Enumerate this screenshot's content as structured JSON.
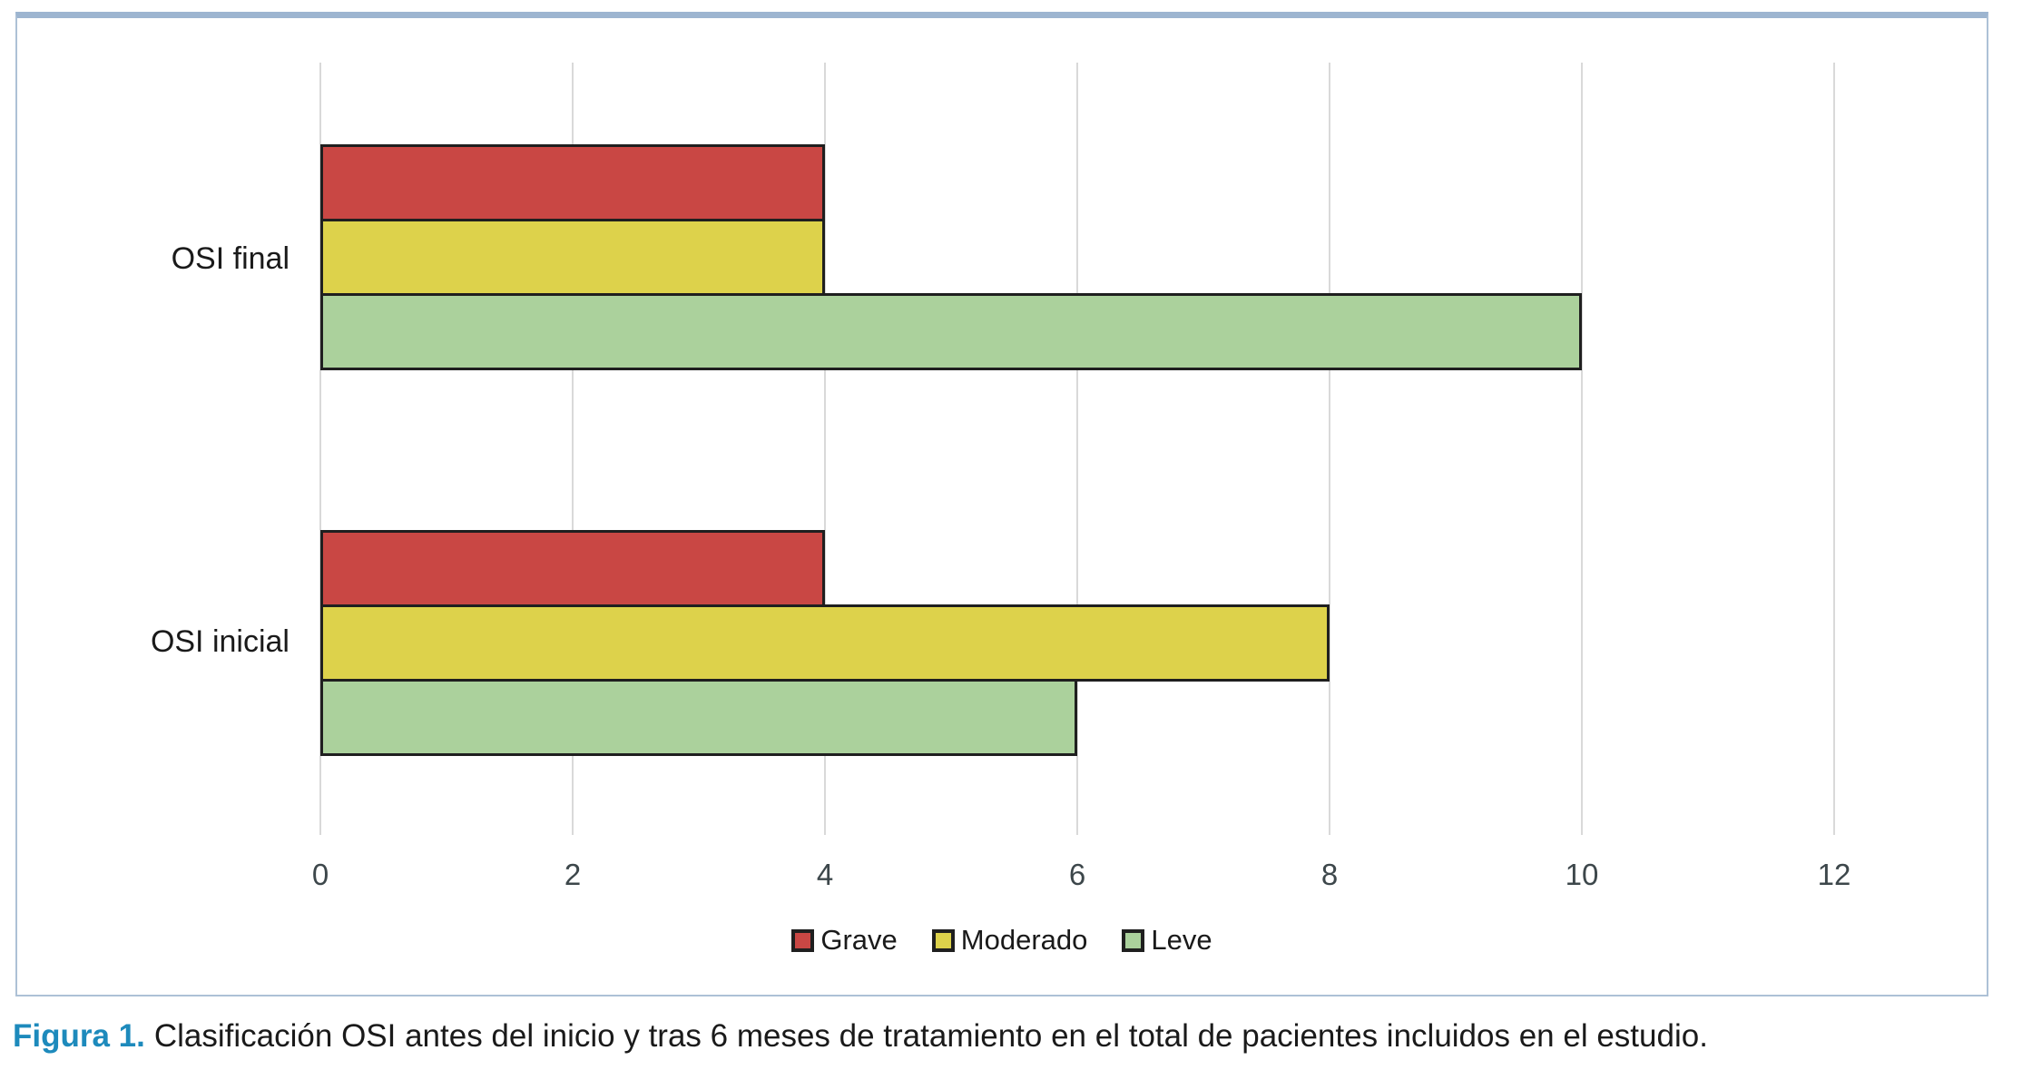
{
  "caption": {
    "label": "Figura 1.",
    "text": "Clasificación OSI antes del inicio y tras 6 meses de tratamiento en el total de pacientes incluidos en el estudio."
  },
  "chart_data": {
    "type": "bar",
    "orientation": "horizontal",
    "title": "",
    "xlabel": "",
    "ylabel": "",
    "categories": [
      "OSI final",
      "OSI inicial"
    ],
    "series": [
      {
        "name": "Grave",
        "color": "#c94744",
        "values": [
          4,
          4
        ]
      },
      {
        "name": "Moderado",
        "color": "#ddd24b",
        "values": [
          4,
          8
        ]
      },
      {
        "name": "Leve",
        "color": "#abd19c",
        "values": [
          10,
          6
        ]
      }
    ],
    "xlim": [
      0,
      12
    ],
    "xticks": [
      0,
      2,
      4,
      6,
      8,
      10,
      12
    ],
    "grid": true,
    "legend_position": "bottom",
    "legend": [
      "Grave",
      "Moderado",
      "Leve"
    ],
    "bar_outline_color": "#1f1f1f",
    "gridline_color": "#d9d9d9"
  },
  "colors": {
    "panel_border": "#adc1d6",
    "panel_border_top": "#9db5d0",
    "caption_accent": "#1d8abc",
    "tick_text": "#3d474b",
    "text": "#1a1a1a",
    "background": "#ffffff"
  }
}
